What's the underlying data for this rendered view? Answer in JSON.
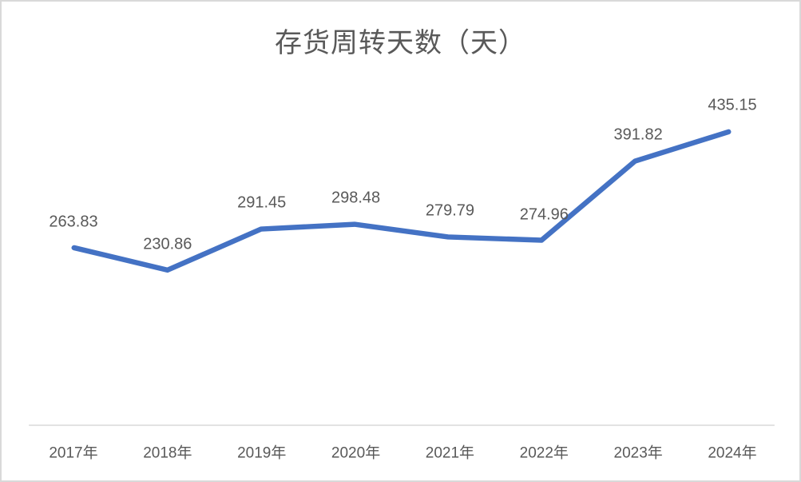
{
  "chart": {
    "title": "存货周转天数（天）",
    "line_color": "#4472c4",
    "axis_line_color": "#d9d9d9",
    "frame_border_color": "#d9d9d9",
    "text_color": "#595959",
    "background_color": "#ffffff"
  },
  "chart_data": {
    "type": "line",
    "title": "存货周转天数（天）",
    "categories": [
      "2017年",
      "2018年",
      "2019年",
      "2020年",
      "2021年",
      "2022年",
      "2023年",
      "2024年"
    ],
    "values": [
      263.83,
      230.86,
      291.45,
      298.48,
      279.79,
      274.96,
      391.82,
      435.15
    ],
    "data_labels": [
      "263.83",
      "230.86",
      "291.45",
      "298.48",
      "279.79",
      "274.96",
      "391.82",
      "435.15"
    ],
    "xlabel": "",
    "ylabel": "",
    "grid": false,
    "legend": "none",
    "markers": false,
    "ylim_shown": [
      230.86,
      435.15
    ]
  }
}
